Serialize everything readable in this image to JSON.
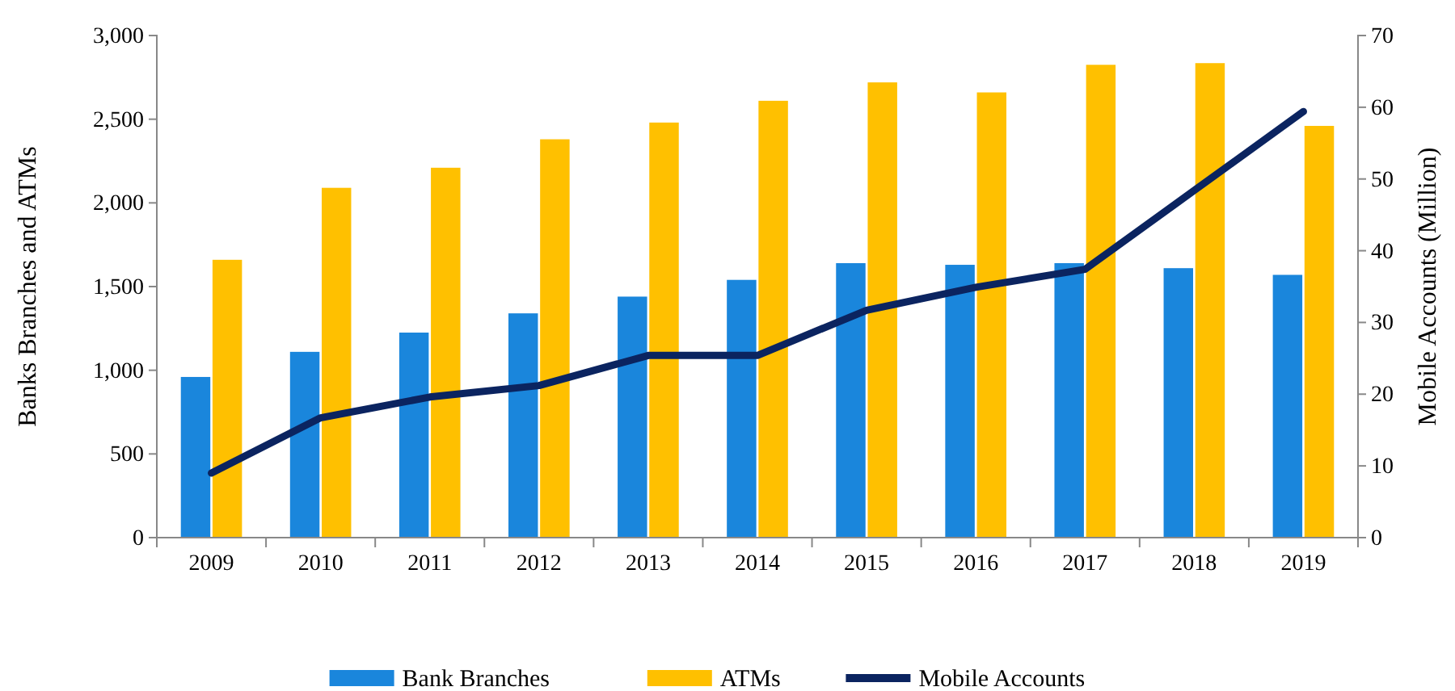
{
  "chart_data": {
    "type": "bar",
    "ylabel": "Banks Branches and ATMs",
    "y2label": "Mobile Accounts (Million)",
    "categories": [
      "2009",
      "2010",
      "2011",
      "2012",
      "2013",
      "2014",
      "2015",
      "2016",
      "2017",
      "2018",
      "2019"
    ],
    "series": [
      {
        "name": "Bank Branches",
        "color": "#1a86dc",
        "values": [
          960,
          1110,
          1225,
          1340,
          1440,
          1540,
          1640,
          1630,
          1640,
          1610,
          1570
        ]
      },
      {
        "name": "ATMs",
        "color": "#ffc000",
        "values": [
          1660,
          2090,
          2210,
          2380,
          2480,
          2610,
          2720,
          2660,
          2825,
          2835,
          2460
        ]
      },
      {
        "name": "Mobile Accounts",
        "type": "line",
        "axis": "y2",
        "color": "#0b2460",
        "values": [
          9,
          16.7,
          19.6,
          21.2,
          25.4,
          25.4,
          31.7,
          34.9,
          37.4,
          48.4,
          59.4
        ]
      }
    ],
    "ylim": [
      0,
      3000
    ],
    "yticks": [
      {
        "value": 0,
        "label": "0"
      },
      {
        "value": 500,
        "label": "500"
      },
      {
        "value": 1000,
        "label": "1,000"
      },
      {
        "value": 1500,
        "label": "1,500"
      },
      {
        "value": 2000,
        "label": "2,000"
      },
      {
        "value": 2500,
        "label": "2,500"
      },
      {
        "value": 3000,
        "label": "3,000"
      }
    ],
    "y2lim": [
      0,
      70
    ],
    "y2ticks": [
      0,
      10,
      20,
      30,
      40,
      50,
      60,
      70
    ],
    "grid": false,
    "legend": "bottom",
    "marker": "none",
    "line_style": "solid"
  }
}
